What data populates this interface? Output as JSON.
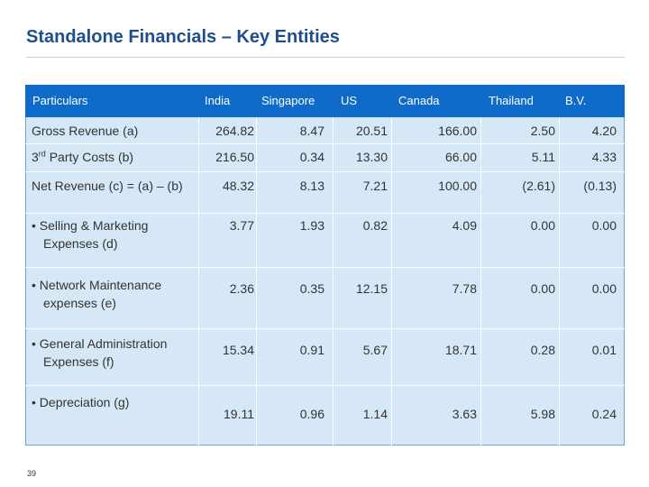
{
  "title": "Standalone Financials – Key Entities",
  "page_number": "39",
  "columns": [
    "Particulars",
    "India",
    "Singapore",
    "US",
    "Canada",
    "Thailand",
    "B.V."
  ],
  "rows": [
    {
      "label": "Gross Revenue (a)",
      "values": [
        "264.82",
        "8.47",
        "20.51",
        "166.00",
        "2.50",
        "4.20"
      ]
    },
    {
      "label_pre": "3",
      "label_sup": "rd",
      "label_post": " Party Costs (b)",
      "values": [
        "216.50",
        "0.34",
        "13.30",
        "66.00",
        "5.11",
        "4.33"
      ]
    },
    {
      "label": "Net Revenue (c) = (a) – (b)",
      "values": [
        "48.32",
        "8.13",
        "7.21",
        "100.00",
        "(2.61)",
        "(0.13)"
      ]
    },
    {
      "label": "• Selling & Marketing Expenses (d)",
      "values": [
        "3.77",
        "1.93",
        "0.82",
        "4.09",
        "0.00",
        "0.00"
      ]
    },
    {
      "label": "• Network Maintenance expenses (e)",
      "values": [
        "2.36",
        "0.35",
        "12.15",
        "7.78",
        "0.00",
        "0.00"
      ]
    },
    {
      "label": "• General Administration Expenses (f)",
      "values": [
        "15.34",
        "0.91",
        "5.67",
        "18.71",
        "0.28",
        "0.01"
      ]
    },
    {
      "label": "• Depreciation (g)",
      "values": [
        "19.11",
        "0.96",
        "1.14",
        "3.63",
        "5.98",
        "0.24"
      ]
    }
  ]
}
